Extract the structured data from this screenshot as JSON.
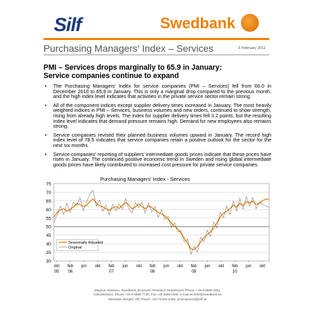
{
  "brand": {
    "silf": "Silf",
    "swedbank": "Swedbank"
  },
  "header": {
    "title": "Purchasing Managers' Index – Services",
    "date": "3 February 2011"
  },
  "headline": {
    "line1": "PMI – Services drops marginally to 65.9 in January:",
    "line2": "Service companies continue to expand"
  },
  "bullets": [
    "The Purchasing Managers' Index for service companies (PMI – Services) fell from 66.0 in December 2010 to 65.9 in January. This is only a marginal drop compared to the previous month, and the high index level indicates that activities in the private service sector remain strong.",
    "All of the component indices except supplier delivery times increased in January. The most heavily weighted indices in PMI – Services, business volumes and new orders, continued to show strength, rising from already high levels. The index for supplier delivery times fell 3.2 points, but the resulting index level indicates that demand pressure remains high. Demand for new employees also remains strong.",
    "Service companies revised their planned business volumes upward in January. The record high index level of 78.5 indicates that service companies retain a positive outlook for the sector for the next six months.",
    "Service companies' reporting of suppliers' intermediate goods prices indicate that these prices have risen in January. The continued positive economic trend in Sweden and rising global intermediate goods prices have likely contributed to increased cost pressure for private service companies."
  ],
  "colors": {
    "orange": "#f08000",
    "navy": "#1b3a7a",
    "original": "#333333"
  },
  "chart_data": {
    "type": "line",
    "title": "Purchasing Managers' Index - Services",
    "ylim": [
      30,
      75
    ],
    "yticks": [
      "30",
      "35",
      "40",
      "45",
      "50",
      "55",
      "60",
      "65",
      "70",
      "75"
    ],
    "xticks": [
      {
        "label": "okt",
        "year": "05"
      },
      {
        "label": "feb",
        "year": "06"
      },
      {
        "label": "jun",
        "year": ""
      },
      {
        "label": "okt",
        "year": ""
      },
      {
        "label": "feb",
        "year": "07"
      },
      {
        "label": "jun",
        "year": ""
      },
      {
        "label": "okt",
        "year": ""
      },
      {
        "label": "feb",
        "year": "08"
      },
      {
        "label": "jun",
        "year": ""
      },
      {
        "label": "okt",
        "year": ""
      },
      {
        "label": "feb",
        "year": "09"
      },
      {
        "label": "jun",
        "year": ""
      },
      {
        "label": "okt",
        "year": ""
      },
      {
        "label": "feb",
        "year": "10"
      },
      {
        "label": "jun",
        "year": ""
      },
      {
        "label": "okt",
        "year": ""
      }
    ],
    "legend_position": "bottom-left",
    "series": [
      {
        "name": "Seasonally Adjusted",
        "style": "solid",
        "color": "#f08000",
        "values": [
          55.5,
          58.2,
          59.6,
          60.4,
          58.8,
          60.1,
          61.4,
          63.3,
          62.8,
          61.7,
          62.2,
          64.5,
          66.1,
          63.8,
          62.1,
          61.5,
          60.2,
          59.4,
          60.8,
          61.8,
          60.5,
          62.4,
          64.0,
          62.5,
          60.3,
          61.5,
          63.2,
          61.6,
          60.4,
          62.0,
          61.2,
          59.6,
          58.3,
          57.4,
          56.2,
          54.3,
          52.1,
          50.2,
          48.6,
          46.1,
          43.2,
          40.3,
          37.1,
          36.5,
          38.4,
          41.0,
          43.6,
          45.2,
          46.9,
          49.1,
          52.3,
          55.6,
          57.8,
          58.9,
          60.6,
          62.4,
          61.3,
          63.6,
          62.2,
          64.5,
          63.7,
          64.8,
          62.9,
          63.4,
          65.2,
          66.0,
          65.9
        ]
      },
      {
        "name": "Original",
        "style": "dotted",
        "color": "#333333",
        "values": [
          52.5,
          56.8,
          62.0,
          57.1,
          63.5,
          58.4,
          64.2,
          62.1,
          66.8,
          59.3,
          64.0,
          68.9,
          71.2,
          62.0,
          65.4,
          58.9,
          62.4,
          56.8,
          62.9,
          59.2,
          63.1,
          60.3,
          66.4,
          60.1,
          57.9,
          64.0,
          61.2,
          64.3,
          57.8,
          63.6,
          58.4,
          61.5,
          55.6,
          59.8,
          54.3,
          56.1,
          49.5,
          52.3,
          46.8,
          47.7,
          41.0,
          42.6,
          33.8,
          38.6,
          35.2,
          43.8,
          41.1,
          47.9,
          44.2,
          52.6,
          49.3,
          58.4,
          55.2,
          61.9,
          57.1,
          64.8,
          59.0,
          66.4,
          60.2,
          67.3,
          61.8,
          67.0,
          60.4,
          64.6,
          62.8,
          61.9,
          61.2
        ]
      }
    ]
  },
  "footer": {
    "line1": "Magnus Alvesson, Swedbank, Economic Research Department, Phone + 46 8-5859 3341",
    "line2": "Administration, Phone +46 8-5859 7740, Fax +46 5859 0540, e-mail ek.sekr@swedbank.se",
    "line3": "Sebastian Berglöf, Silf, Phone +46-73-944 6450, pmiinsamera@silf.se"
  }
}
